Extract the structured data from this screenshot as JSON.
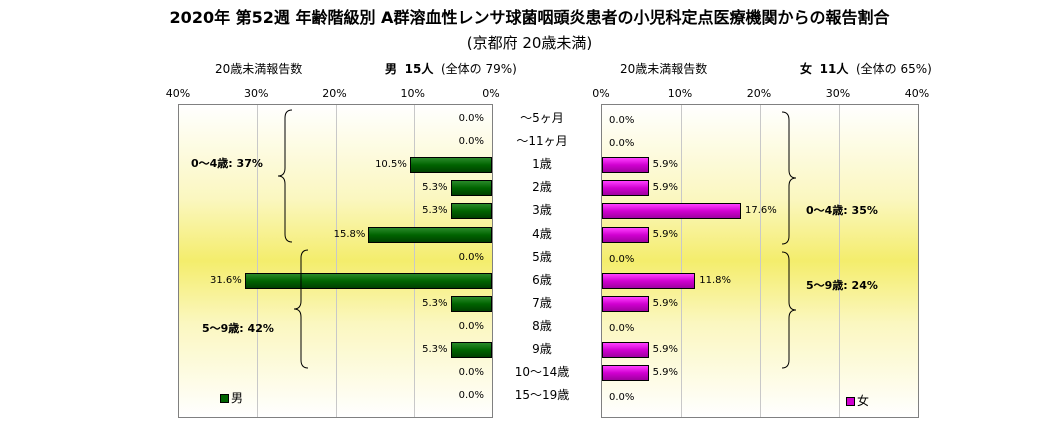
{
  "title": "2020年 第52週 年齢階級別 A群溶血性レンサ球菌咽頭炎患者の小児科定点医療機関からの報告割合",
  "subtitle": "(京都府 20歳未満)",
  "male_header": {
    "count_label": "20歳未満報告数",
    "sex": "男",
    "count": "15人",
    "share": "(全体の 79%)"
  },
  "female_header": {
    "count_label": "20歳未満報告数",
    "sex": "女",
    "count": "11人",
    "share": "(全体の 65%)"
  },
  "groups": {
    "male_0_4": "0～4歳: 37%",
    "male_5_9": "5～9歳: 42%",
    "female_0_4": "0～4歳: 35%",
    "female_5_9": "5～9歳: 24%"
  },
  "colors": {
    "male": "#006400",
    "female": "#d000d0"
  },
  "chart_data": {
    "type": "bar",
    "orientation": "horizontal-pyramid",
    "title": "2020年 第52週 年齢階級別 A群溶血性レンサ球菌咽頭炎患者の小児科定点医療機関からの報告割合",
    "subtitle": "(京都府 20歳未満)",
    "categories": [
      "～5ヶ月",
      "～11ヶ月",
      "1歳",
      "2歳",
      "3歳",
      "4歳",
      "5歳",
      "6歳",
      "7歳",
      "8歳",
      "9歳",
      "10～14歳",
      "15～19歳"
    ],
    "series": [
      {
        "name": "男",
        "values": [
          0.0,
          0.0,
          10.5,
          5.3,
          5.3,
          15.8,
          0.0,
          31.6,
          5.3,
          0.0,
          5.3,
          0.0,
          0.0
        ],
        "labels": [
          "0.0%",
          "0.0%",
          "10.5%",
          "5.3%",
          "5.3%",
          "15.8%",
          "0.0%",
          "31.6%",
          "5.3%",
          "0.0%",
          "5.3%",
          "0.0%",
          "0.0%"
        ]
      },
      {
        "name": "女",
        "values": [
          0.0,
          0.0,
          5.9,
          5.9,
          17.6,
          5.9,
          0.0,
          11.8,
          5.9,
          0.0,
          5.9,
          5.9,
          0.0
        ],
        "labels": [
          "0.0%",
          "0.0%",
          "5.9%",
          "5.9%",
          "17.6%",
          "5.9%",
          "0.0%",
          "11.8%",
          "5.9%",
          "0.0%",
          "5.9%",
          "5.9%",
          "0.0%"
        ]
      }
    ],
    "xlim": [
      0,
      40
    ],
    "male_ticks": [
      "40%",
      "30%",
      "20%",
      "10%",
      "0%"
    ],
    "female_ticks": [
      "0%",
      "10%",
      "20%",
      "30%",
      "40%"
    ],
    "legend_placement": "bottom-left / bottom-right",
    "grid": true
  }
}
